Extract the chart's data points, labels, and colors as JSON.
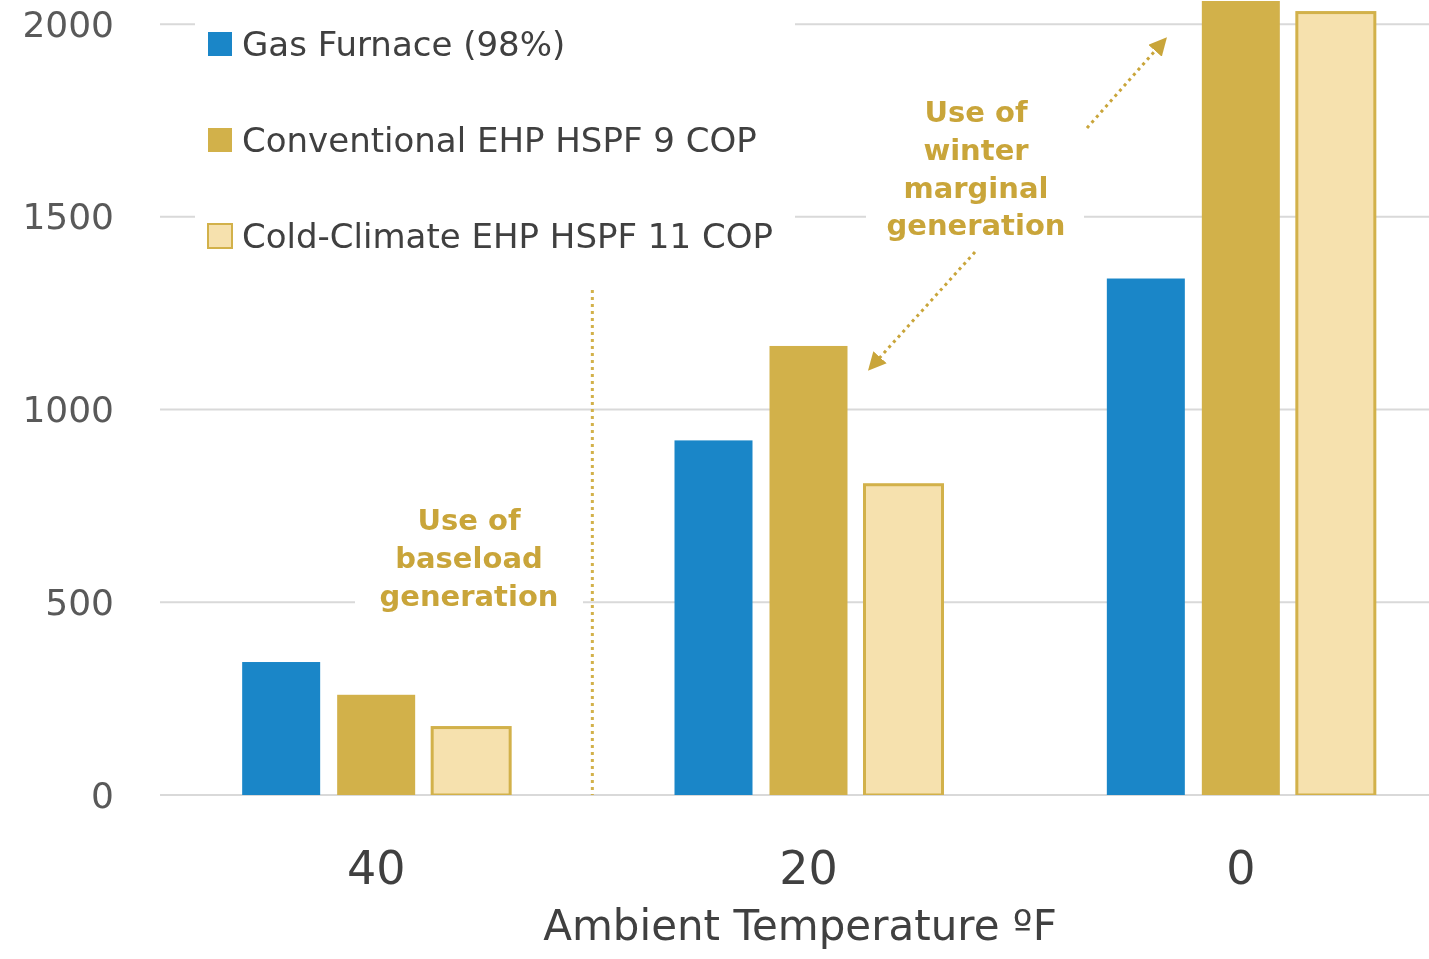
{
  "chart_data": {
    "type": "bar",
    "categories": [
      "40",
      "20",
      "0"
    ],
    "xlabel": "Ambient Temperature ºF",
    "series": [
      {
        "name": "Gas Furnace (98%)",
        "color": "#1a86c8",
        "values": [
          345,
          920,
          1340
        ]
      },
      {
        "name": "Conventional EHP HSPF 9 COP",
        "color": "#d2b14a",
        "values": [
          260,
          1165,
          2060
        ]
      },
      {
        "name": "Cold-Climate EHP HSPF 11 COP",
        "color": "#f6e1ae",
        "values": [
          175,
          805,
          2030
        ]
      }
    ],
    "ylim": [
      0,
      2060
    ],
    "yticks": [
      0,
      500,
      1000,
      1500,
      2000
    ],
    "grid": "y",
    "legend": "top left",
    "annotations": [
      "Use of baseload generation",
      "Use of winter marginal generation"
    ]
  }
}
